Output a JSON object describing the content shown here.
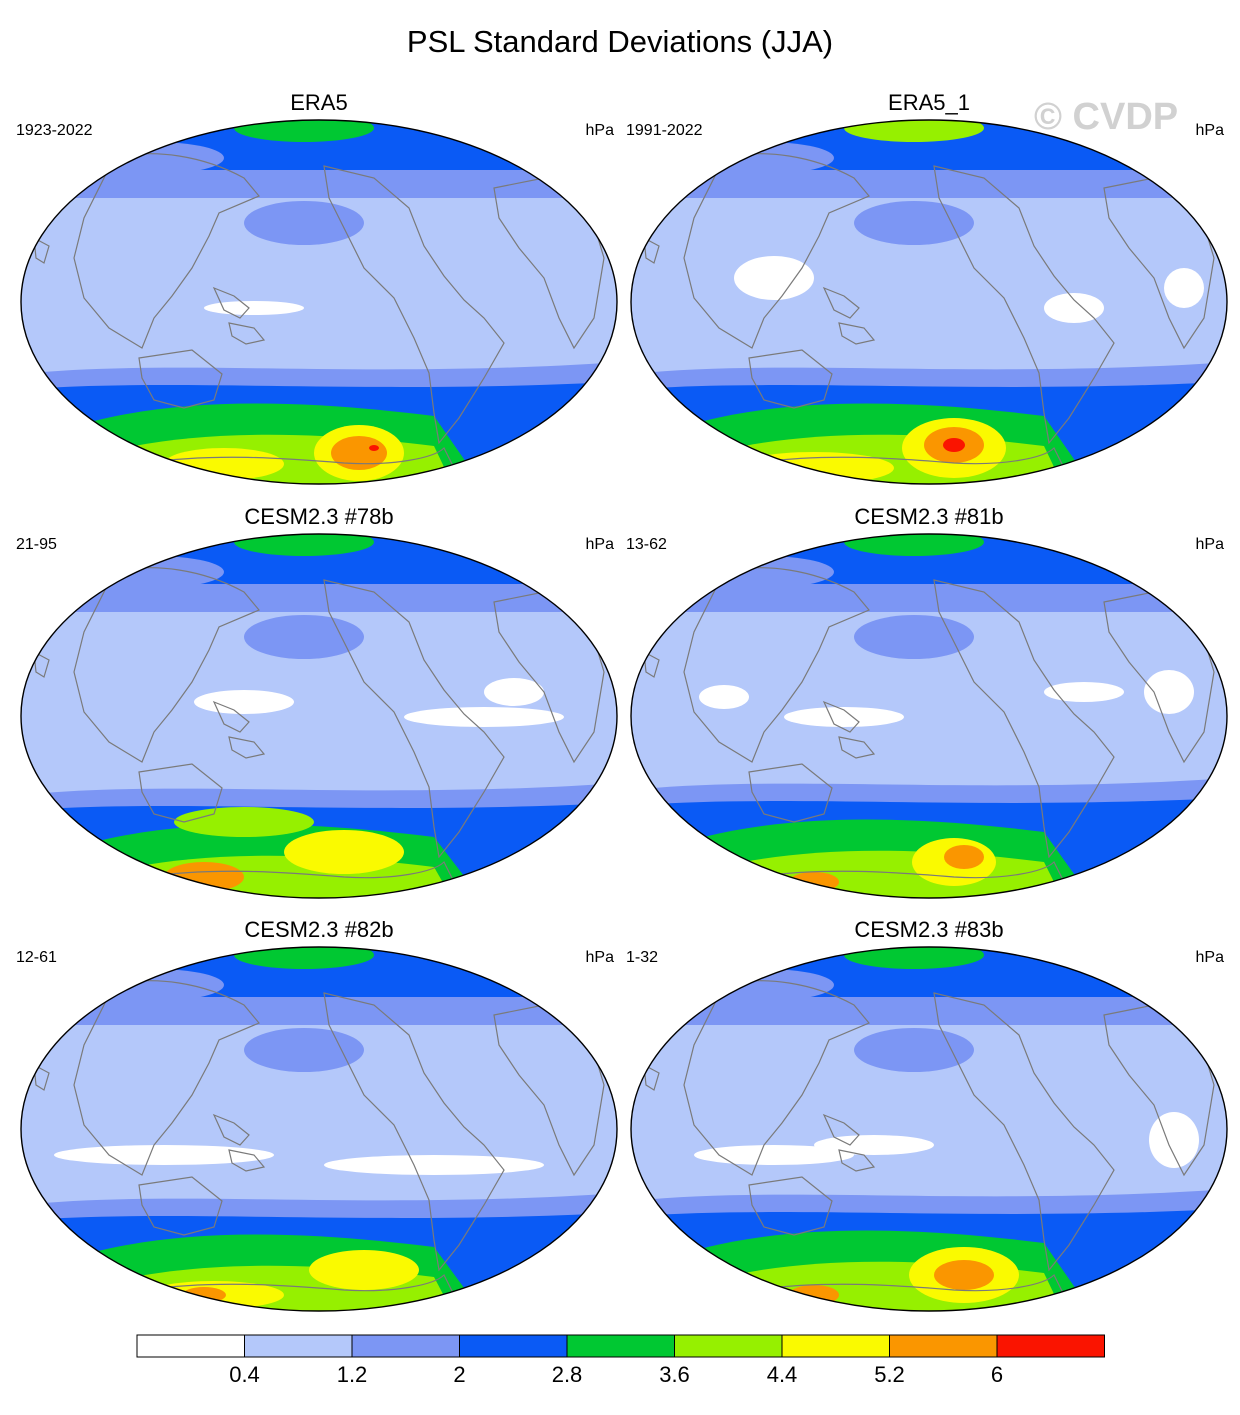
{
  "figure": {
    "title": "PSL Standard Deviations (JJA)",
    "watermark": "© CVDP"
  },
  "panels": [
    {
      "title": "ERA5",
      "years": "1923-2022",
      "units": "hPa"
    },
    {
      "title": "ERA5_1",
      "years": "1991-2022",
      "units": "hPa"
    },
    {
      "title": "CESM2.3 #78b",
      "years": "21-95",
      "units": "hPa"
    },
    {
      "title": "CESM2.3 #81b",
      "years": "13-62",
      "units": "hPa"
    },
    {
      "title": "CESM2.3 #82b",
      "years": "12-61",
      "units": "hPa"
    },
    {
      "title": "CESM2.3 #83b",
      "years": "1-32",
      "units": "hPa"
    }
  ],
  "colorbar": {
    "units": "hPa",
    "levels": [
      "0.4",
      "1.2",
      "2",
      "2.8",
      "3.6",
      "4.4",
      "5.2",
      "6"
    ],
    "colors": [
      "#ffffff",
      "#b4c8fa",
      "#7c96f4",
      "#0a5af5",
      "#00c832",
      "#96f000",
      "#fafa00",
      "#fa9600",
      "#fa1400"
    ]
  },
  "colors": {
    "coastline": "#7a7a7a",
    "map_outline": "#000000",
    "watermark": "#c9c9c9"
  }
}
